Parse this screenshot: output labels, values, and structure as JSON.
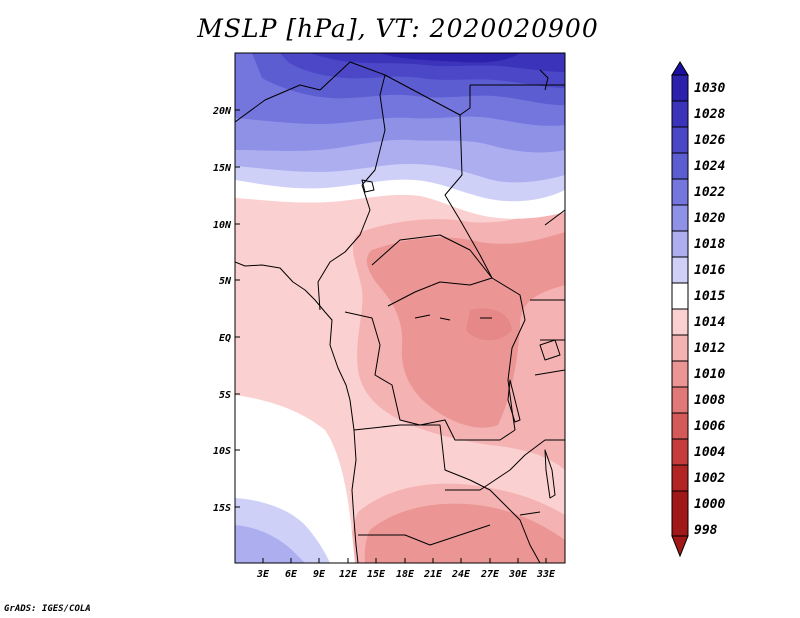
{
  "title": "MSLP [hPa], VT: 2020020900",
  "credit": "GrADS: IGES/COLA",
  "map": {
    "lat_labels": [
      "20N",
      "15N",
      "10N",
      "5N",
      "EQ",
      "5S",
      "10S",
      "15S"
    ],
    "lon_labels": [
      "3E",
      "6E",
      "9E",
      "12E",
      "15E",
      "18E",
      "21E",
      "24E",
      "27E",
      "30E",
      "33E"
    ]
  },
  "colorbar": {
    "levels": [
      "1030",
      "1028",
      "1026",
      "1024",
      "1022",
      "1020",
      "1018",
      "1016",
      "1015",
      "1014",
      "1012",
      "1010",
      "1008",
      "1006",
      "1004",
      "1002",
      "1000",
      "998"
    ],
    "colors": [
      "#1a0fa0",
      "#2b21ad",
      "#3b33ba",
      "#4c47c6",
      "#5d5dd2",
      "#7475dd",
      "#8f91e7",
      "#adaef0",
      "#cfd0f7",
      "#ffffff",
      "#fbd0d0",
      "#f4b2b2",
      "#eb9594",
      "#df7877",
      "#d45a59",
      "#c63b3b",
      "#b32424",
      "#a01818"
    ]
  }
}
